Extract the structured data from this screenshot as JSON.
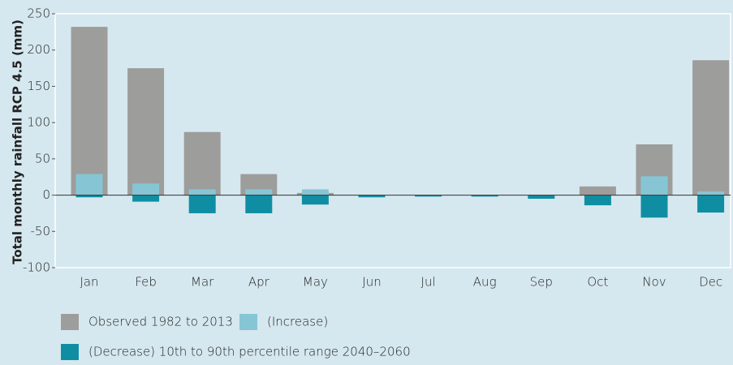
{
  "chart_data": {
    "type": "bar",
    "y_label": "Total monthly rainfall RCP 4.5 (mm)",
    "categories": [
      "Jan",
      "Feb",
      "Mar",
      "Apr",
      "May",
      "Jun",
      "Jul",
      "Aug",
      "Sep",
      "Oct",
      "Nov",
      "Dec"
    ],
    "series": [
      {
        "name": "Observed 1982 to 2013",
        "color": "#9d9d9c",
        "values": [
          232,
          175,
          87,
          29,
          3,
          0,
          0,
          0,
          0,
          12,
          70,
          186
        ]
      },
      {
        "name": "(Increase)",
        "color": "#86c6d4",
        "values": [
          29,
          16,
          8,
          8,
          8,
          0,
          0,
          0,
          0,
          0,
          26,
          5
        ]
      },
      {
        "name": "(Decrease) 10th to 90th percentile range 2040–2060",
        "color": "#0f8ea3",
        "values": [
          -3,
          -9,
          -25,
          -25,
          -13,
          -3,
          -2,
          -2,
          -5,
          -14,
          -31,
          -24
        ]
      }
    ],
    "ylim": [
      -100,
      250
    ],
    "yticks": [
      250,
      200,
      150,
      100,
      50,
      0,
      -50,
      -100
    ]
  }
}
